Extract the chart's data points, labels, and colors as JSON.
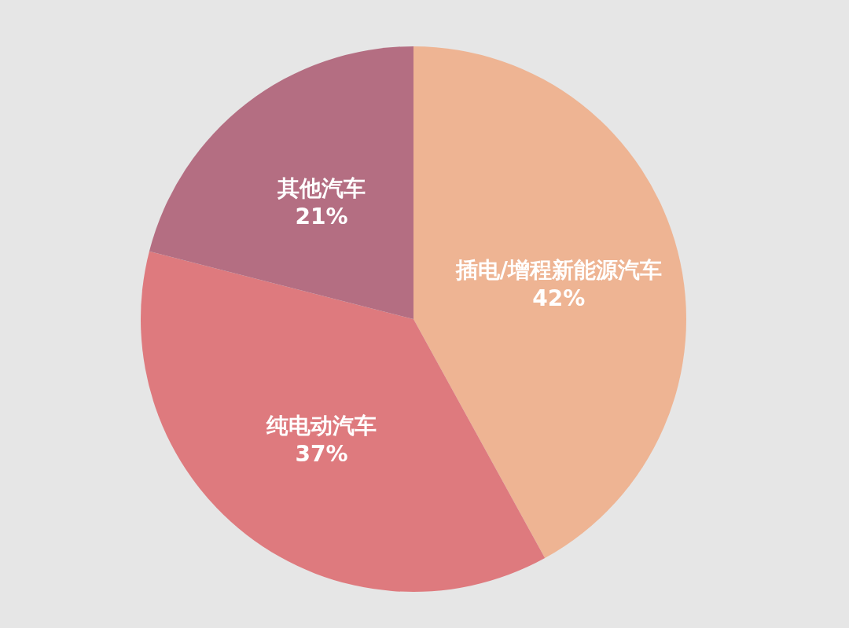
{
  "chart_data": {
    "type": "pie",
    "categories": [
      "插电/增程新能源汽车",
      "纯电动汽车",
      "其他汽车"
    ],
    "values": [
      42,
      37,
      21
    ],
    "colors": [
      "#eeb493",
      "#de7a7e",
      "#b46e82"
    ],
    "value_labels": [
      "42%",
      "37%",
      "21%"
    ]
  }
}
